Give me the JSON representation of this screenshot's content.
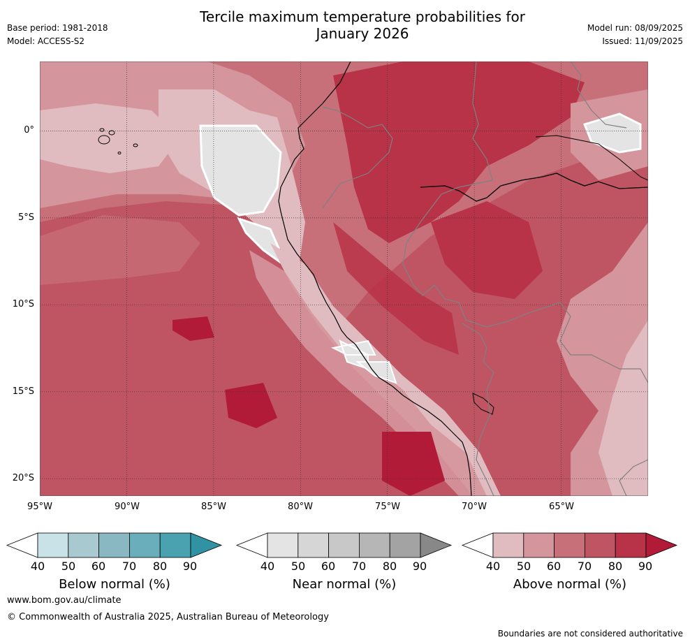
{
  "header": {
    "title_line1": "Tercile maximum temperature probabilities for",
    "title_line2": "January 2026",
    "base_period": "Base period: 1981-2018",
    "model": "Model: ACCESS-S2",
    "model_run": "Model run: 08/09/2025",
    "issued": "Issued: 11/09/2025"
  },
  "axes": {
    "lat_labels": [
      "0°",
      "5°S",
      "10°S",
      "15°S",
      "20°S"
    ],
    "lon_labels": [
      "95°W",
      "90°W",
      "85°W",
      "80°W",
      "75°W",
      "70°W",
      "65°W"
    ],
    "lon_range": [
      -95,
      -60
    ],
    "lat_range": [
      -21,
      4
    ],
    "grid": true
  },
  "legend": {
    "ticks": [
      "40",
      "50",
      "60",
      "70",
      "80",
      "90"
    ],
    "below": {
      "title": "Below normal (%)",
      "colors": [
        "#ffffff",
        "#c8e2e7",
        "#a7c9cf",
        "#89b8c3",
        "#6aaebb",
        "#4aa2b0",
        "#3192a4"
      ]
    },
    "near": {
      "title": "Near normal (%)",
      "colors": [
        "#ffffff",
        "#e4e4e4",
        "#d6d6d6",
        "#c8c8c8",
        "#b6b6b6",
        "#a3a3a3",
        "#888888"
      ]
    },
    "above": {
      "title": "Above normal (%)",
      "colors": [
        "#ffffff",
        "#e0bcc1",
        "#d5959c",
        "#c87079",
        "#bf5563",
        "#b83347",
        "#b11b38"
      ]
    }
  },
  "footer": {
    "url": "www.bom.gov.au/climate",
    "copyright": "© Commonwealth of Australia 2025, Australian Bureau of Meteorology",
    "disclaimer": "Boundaries are not considered authoritative"
  }
}
